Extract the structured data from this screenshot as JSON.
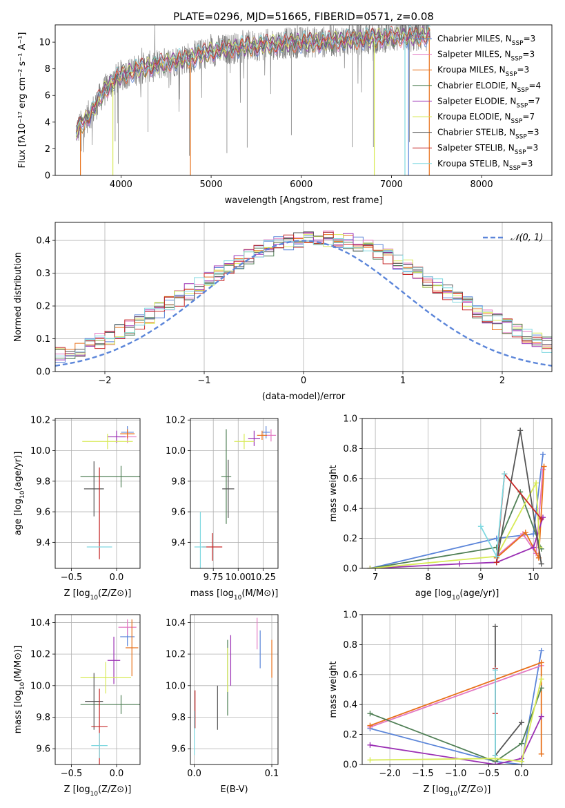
{
  "colors": {
    "chabrier_miles": "#5b85d9",
    "salpeter_miles": "#e377c2",
    "kroupa_miles": "#e8711a",
    "chabrier_elodie": "#4f7f55",
    "salpeter_elodie": "#9b30b4",
    "kroupa_elodie": "#d7ea55",
    "chabrier_stelib": "#555555",
    "salpeter_stelib": "#c62828",
    "kroupa_stelib": "#7fd8e0",
    "gaussian": "#5b85d9",
    "data": "#808080",
    "grid": "#b0b0b0"
  },
  "legend_labels": [
    {
      "text": "Chabrier MILES, N",
      "sub": "SSP",
      "tail": "=3",
      "color_key": "chabrier_miles"
    },
    {
      "text": "Salpeter MILES, N",
      "sub": "SSP",
      "tail": "=3",
      "color_key": "salpeter_miles"
    },
    {
      "text": "Kroupa MILES, N",
      "sub": "SSP",
      "tail": "=3",
      "color_key": "kroupa_miles"
    },
    {
      "text": "Chabrier ELODIE, N",
      "sub": "SSP",
      "tail": "=4",
      "color_key": "chabrier_elodie"
    },
    {
      "text": "Salpeter ELODIE, N",
      "sub": "SSP",
      "tail": "=7",
      "color_key": "salpeter_elodie"
    },
    {
      "text": "Kroupa ELODIE, N",
      "sub": "SSP",
      "tail": "=7",
      "color_key": "kroupa_elodie"
    },
    {
      "text": "Chabrier STELIB, N",
      "sub": "SSP",
      "tail": "=3",
      "color_key": "chabrier_stelib"
    },
    {
      "text": "Salpeter STELIB, N",
      "sub": "SSP",
      "tail": "=3",
      "color_key": "salpeter_stelib"
    },
    {
      "text": "Kroupa STELIB, N",
      "sub": "SSP",
      "tail": "=3",
      "color_key": "kroupa_stelib"
    }
  ],
  "chart_data": [
    {
      "id": "spectrum",
      "type": "line",
      "title": "PLATE=0296, MJD=51665, FIBERID=0571, z=0.08",
      "xlabel": "wavelength [Angstrom, rest frame]",
      "ylabel": "Flux [fλ10⁻¹⁷ erg cm⁻² s⁻¹ A⁻¹]",
      "xlim": [
        3270,
        8780
      ],
      "ylim": [
        0,
        11.3
      ],
      "xticks": [
        4000,
        5000,
        6000,
        7000,
        8000
      ],
      "yticks": [
        0,
        2,
        4,
        6,
        8,
        10
      ],
      "grid": false,
      "legend": "upper right",
      "continuum": {
        "x": [
          3500,
          3600,
          3700,
          3800,
          3900,
          4000,
          4200,
          4400,
          4600,
          4800,
          5000,
          5200,
          5400,
          5600,
          5800,
          6000,
          6200,
          6400,
          6600,
          6800,
          7000,
          7200,
          7400
        ],
        "y": [
          3.3,
          4.1,
          5.0,
          6.2,
          7.0,
          7.5,
          8.0,
          8.3,
          8.6,
          8.9,
          9.3,
          9.5,
          9.7,
          9.8,
          9.9,
          10.0,
          10.0,
          10.1,
          10.2,
          10.3,
          10.4,
          10.4,
          10.5
        ]
      },
      "series": [
        {
          "color_key": "chabrier_miles",
          "drop": [
            7190
          ]
        },
        {
          "color_key": "salpeter_miles",
          "drop": []
        },
        {
          "color_key": "kroupa_miles",
          "drop": [
            3550,
            4770,
            7420
          ]
        },
        {
          "color_key": "chabrier_elodie",
          "drop": []
        },
        {
          "color_key": "salpeter_elodie",
          "drop": []
        },
        {
          "color_key": "kroupa_elodie",
          "drop": [
            3910,
            6810
          ]
        },
        {
          "color_key": "chabrier_stelib",
          "drop": []
        },
        {
          "color_key": "salpeter_stelib",
          "drop": []
        },
        {
          "color_key": "kroupa_stelib",
          "drop": [
            7150
          ]
        }
      ]
    },
    {
      "id": "residuals",
      "type": "line",
      "xlabel": "(data-model)/error",
      "ylabel": "Normed distribution",
      "xlim": [
        -2.5,
        2.5
      ],
      "ylim": [
        0,
        0.455
      ],
      "xticks": [
        -2,
        -1,
        0,
        1,
        2
      ],
      "yticks": [
        0.0,
        0.1,
        0.2,
        0.3,
        0.4
      ],
      "grid": true,
      "legend": "upper right",
      "gaussian_label": "𝒩(0, 1)",
      "bin_width": 0.1
    },
    {
      "id": "age_vs_Z",
      "type": "scatter",
      "xlabel": "Z [log10(Z/Z⊙)]",
      "ylabel": "age  [log10(age/yr)]",
      "xlim": [
        -0.68,
        0.26
      ],
      "ylim": [
        9.23,
        10.21
      ],
      "xticks": [
        -0.5,
        0.0
      ],
      "xticklabels": [
        "−0.5",
        "0.0"
      ],
      "yticks": [
        9.4,
        9.6,
        9.8,
        10.0,
        10.2
      ],
      "grid": true,
      "points": [
        {
          "color_key": "chabrier_miles",
          "x": 0.12,
          "y": 10.12,
          "xe": 0.07,
          "ye": 0.04
        },
        {
          "color_key": "salpeter_miles",
          "x": 0.12,
          "y": 10.09,
          "xe": 0.1,
          "ye": 0.04
        },
        {
          "color_key": "kroupa_miles",
          "x": 0.12,
          "y": 10.11,
          "xe": 0.08,
          "ye": 0.03
        },
        {
          "color_key": "chabrier_elodie",
          "x": 0.05,
          "y": 9.83,
          "xe": 0.45,
          "ye": 0.07
        },
        {
          "color_key": "salpeter_elodie",
          "x": 0.0,
          "y": 10.09,
          "xe": 0.1,
          "ye": 0.04
        },
        {
          "color_key": "kroupa_elodie",
          "x": -0.1,
          "y": 10.06,
          "xe": 0.28,
          "ye": 0.05
        },
        {
          "color_key": "chabrier_stelib",
          "x": -0.25,
          "y": 9.75,
          "xe": 0.11,
          "ye": 0.18
        },
        {
          "color_key": "salpeter_stelib",
          "x": -0.19,
          "y": 9.59,
          "xe": 0.0,
          "ye": 0.3
        },
        {
          "color_key": "kroupa_stelib",
          "x": -0.19,
          "y": 9.37,
          "xe": 0.14,
          "ye": 0.0
        }
      ]
    },
    {
      "id": "age_vs_mass",
      "type": "scatter",
      "xlabel": "mass [log10(M/M⊙)]",
      "ylabel": "",
      "xlim": [
        9.52,
        10.4
      ],
      "ylim": [
        9.23,
        10.21
      ],
      "xticks": [
        9.75,
        10.0,
        10.25
      ],
      "xticklabels": [
        "9.75",
        "10.00",
        "10.25"
      ],
      "yticks": [
        9.4,
        9.6,
        9.8,
        10.0,
        10.2
      ],
      "grid": true,
      "points": [
        {
          "color_key": "chabrier_miles",
          "x": 10.28,
          "y": 10.12,
          "xe": 0.04,
          "ye": 0.04
        },
        {
          "color_key": "salpeter_miles",
          "x": 10.33,
          "y": 10.1,
          "xe": 0.05,
          "ye": 0.04
        },
        {
          "color_key": "kroupa_miles",
          "x": 10.24,
          "y": 10.1,
          "xe": 0.05,
          "ye": 0.03
        },
        {
          "color_key": "chabrier_elodie",
          "x": 9.88,
          "y": 9.83,
          "xe": 0.05,
          "ye": 0.31
        },
        {
          "color_key": "salpeter_elodie",
          "x": 10.16,
          "y": 10.08,
          "xe": 0.06,
          "ye": 0.05
        },
        {
          "color_key": "kroupa_elodie",
          "x": 10.06,
          "y": 10.06,
          "xe": 0.1,
          "ye": 0.05
        },
        {
          "color_key": "chabrier_stelib",
          "x": 9.9,
          "y": 9.75,
          "xe": 0.06,
          "ye": 0.19
        },
        {
          "color_key": "salpeter_stelib",
          "x": 9.74,
          "y": 9.37,
          "xe": 0.1,
          "ye": 0.09
        },
        {
          "color_key": "kroupa_stelib",
          "x": 9.62,
          "y": 9.37,
          "xe": 0.06,
          "ye": 0.23
        }
      ]
    },
    {
      "id": "weight_vs_age",
      "type": "line",
      "xlabel": "age  [log10(age/yr)]",
      "ylabel": "mass weight",
      "xlim": [
        6.75,
        10.35
      ],
      "ylim": [
        0,
        1.0
      ],
      "xticks": [
        7,
        8,
        9,
        10
      ],
      "yticks": [
        0.0,
        0.2,
        0.4,
        0.6,
        0.8,
        1.0
      ],
      "grid": true,
      "series": [
        {
          "color_key": "chabrier_miles",
          "x": [
            6.9,
            9.3,
            10.0,
            10.18
          ],
          "y": [
            0.0,
            0.2,
            0.23,
            0.76
          ]
        },
        {
          "color_key": "salpeter_miles",
          "x": [
            9.3,
            9.8,
            10.05,
            10.18
          ],
          "y": [
            0.08,
            0.23,
            0.1,
            0.66
          ]
        },
        {
          "color_key": "kroupa_miles",
          "x": [
            9.3,
            9.85,
            10.1,
            10.2
          ],
          "y": [
            0.07,
            0.24,
            0.07,
            0.68
          ]
        },
        {
          "color_key": "chabrier_elodie",
          "x": [
            6.9,
            9.3,
            9.75,
            10.15
          ],
          "y": [
            0.0,
            0.14,
            0.51,
            0.13
          ]
        },
        {
          "color_key": "salpeter_elodie",
          "x": [
            6.9,
            8.6,
            9.3,
            10.0,
            10.18
          ],
          "y": [
            0.0,
            0.03,
            0.04,
            0.14,
            0.34
          ]
        },
        {
          "color_key": "kroupa_elodie",
          "x": [
            6.9,
            9.3,
            10.05,
            10.12
          ],
          "y": [
            0.0,
            0.08,
            0.57,
            0.14
          ]
        },
        {
          "color_key": "chabrier_stelib",
          "x": [
            9.3,
            9.75,
            10.15
          ],
          "y": [
            0.04,
            0.92,
            0.03
          ]
        },
        {
          "color_key": "salpeter_stelib",
          "x": [
            9.3,
            9.45,
            10.15
          ],
          "y": [
            0.04,
            0.63,
            0.33
          ]
        },
        {
          "color_key": "kroupa_stelib",
          "x": [
            9.0,
            9.3,
            9.45
          ],
          "y": [
            0.28,
            0.08,
            0.63
          ]
        }
      ]
    },
    {
      "id": "mass_vs_Z",
      "type": "scatter",
      "xlabel": "Z [log10(Z/Z⊙)]",
      "ylabel": "mass [log10(M/M⊙)]",
      "xlim": [
        -0.68,
        0.26
      ],
      "ylim": [
        9.5,
        10.45
      ],
      "xticks": [
        -0.5,
        0.0
      ],
      "xticklabels": [
        "−0.5",
        "0.0"
      ],
      "yticks": [
        9.6,
        9.8,
        10.0,
        10.2,
        10.4
      ],
      "grid": true,
      "points": [
        {
          "color_key": "chabrier_miles",
          "x": 0.12,
          "y": 10.31,
          "xe": 0.08,
          "ye": 0.06
        },
        {
          "color_key": "salpeter_miles",
          "x": 0.12,
          "y": 10.37,
          "xe": 0.1,
          "ye": 0.05
        },
        {
          "color_key": "kroupa_miles",
          "x": 0.17,
          "y": 10.24,
          "xe": 0.07,
          "ye": 0.18
        },
        {
          "color_key": "chabrier_elodie",
          "x": 0.05,
          "y": 9.88,
          "xe": 0.45,
          "ye": 0.06
        },
        {
          "color_key": "salpeter_elodie",
          "x": -0.03,
          "y": 10.16,
          "xe": 0.07,
          "ye": 0.15
        },
        {
          "color_key": "kroupa_elodie",
          "x": -0.12,
          "y": 10.05,
          "xe": 0.28,
          "ye": 0.1
        },
        {
          "color_key": "chabrier_stelib",
          "x": -0.25,
          "y": 9.9,
          "xe": 0.1,
          "ye": 0.18
        },
        {
          "color_key": "salpeter_stelib",
          "x": -0.19,
          "y": 9.74,
          "xe": 0.09,
          "ye": 0.24
        },
        {
          "color_key": "kroupa_stelib",
          "x": -0.19,
          "y": 9.62,
          "xe": 0.09,
          "ye": 0.08
        }
      ]
    },
    {
      "id": "mass_vs_ebv",
      "type": "scatter",
      "xlabel": "E(B-V)",
      "ylabel": "",
      "xlim": [
        -0.005,
        0.108
      ],
      "ylim": [
        9.5,
        10.45
      ],
      "xticks": [
        0.0,
        0.1
      ],
      "xticklabels": [
        "0.0",
        "0.1"
      ],
      "yticks": [
        9.6,
        9.8,
        10.0,
        10.2,
        10.4
      ],
      "grid": true,
      "points": [
        {
          "color_key": "chabrier_miles",
          "x": 0.085,
          "y": 10.23,
          "xe": 0,
          "ye": 0.12
        },
        {
          "color_key": "salpeter_miles",
          "x": 0.081,
          "y": 10.33,
          "xe": 0,
          "ye": 0.1
        },
        {
          "color_key": "kroupa_miles",
          "x": 0.1,
          "y": 10.17,
          "xe": 0,
          "ye": 0.12
        },
        {
          "color_key": "chabrier_elodie",
          "x": 0.043,
          "y": 10.05,
          "xe": 0,
          "ye": 0.24
        },
        {
          "color_key": "salpeter_elodie",
          "x": 0.047,
          "y": 10.16,
          "xe": 0,
          "ye": 0.16
        },
        {
          "color_key": "kroupa_elodie",
          "x": 0.043,
          "y": 10.1,
          "xe": 0,
          "ye": 0.14
        },
        {
          "color_key": "chabrier_stelib",
          "x": 0.03,
          "y": 9.86,
          "xe": 0,
          "ye": 0.14
        },
        {
          "color_key": "salpeter_stelib",
          "x": 0.001,
          "y": 9.85,
          "xe": 0,
          "ye": 0.12
        },
        {
          "color_key": "kroupa_stelib",
          "x": 0.0,
          "y": 9.7,
          "xe": 0,
          "ye": 0.14
        }
      ]
    },
    {
      "id": "weight_vs_Z",
      "type": "line",
      "xlabel": "Z [log10(Z/Z⊙)]",
      "ylabel": "mass weight",
      "xlim": [
        -2.42,
        0.46
      ],
      "ylim": [
        0,
        1.0
      ],
      "xticks": [
        -2.0,
        -1.5,
        -1.0,
        -0.5,
        0.0
      ],
      "xticklabels": [
        "−2.0",
        "−1.5",
        "−1.0",
        "−0.5",
        "0.0"
      ],
      "yticks": [
        0.0,
        0.2,
        0.4,
        0.6,
        0.8,
        1.0
      ],
      "grid": true,
      "series": [
        {
          "color_key": "chabrier_miles",
          "x": [
            -2.3,
            -0.4,
            0.0,
            0.3
          ],
          "y": [
            0.24,
            0.02,
            0.0,
            0.76
          ]
        },
        {
          "color_key": "salpeter_miles",
          "x": [
            -2.3,
            0.3
          ],
          "y": [
            0.25,
            0.66
          ]
        },
        {
          "color_key": "kroupa_miles",
          "x": [
            -2.3,
            0.3,
            0.3
          ],
          "y": [
            0.26,
            0.68,
            0.07
          ]
        },
        {
          "color_key": "chabrier_elodie",
          "x": [
            -2.3,
            -0.4,
            0.0,
            0.3
          ],
          "y": [
            0.34,
            0.02,
            0.14,
            0.51
          ]
        },
        {
          "color_key": "salpeter_elodie",
          "x": [
            -2.3,
            -0.4,
            0.0,
            0.3
          ],
          "y": [
            0.13,
            0.0,
            0.04,
            0.32
          ]
        },
        {
          "color_key": "kroupa_elodie",
          "x": [
            -2.3,
            -0.4,
            0.0,
            0.3
          ],
          "y": [
            0.03,
            0.04,
            0.02,
            0.57
          ]
        },
        {
          "color_key": "chabrier_stelib",
          "x": [
            -0.4,
            -0.4,
            0.0
          ],
          "y": [
            0.92,
            0.06,
            0.28
          ]
        },
        {
          "color_key": "salpeter_stelib",
          "x": [
            -0.4,
            -0.4
          ],
          "y": [
            0.34,
            0.64
          ]
        },
        {
          "color_key": "kroupa_stelib",
          "x": [
            -0.4,
            -0.4
          ],
          "y": [
            0.06,
            0.63
          ]
        }
      ]
    }
  ]
}
